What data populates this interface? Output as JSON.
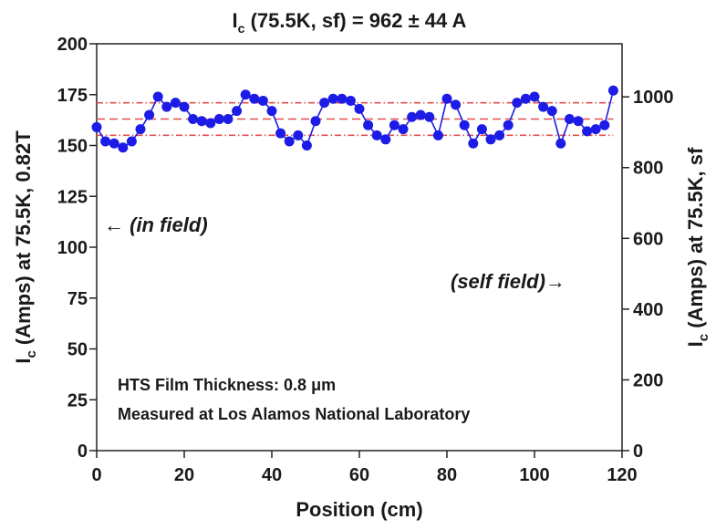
{
  "chart_data": {
    "type": "line",
    "title": {
      "main": "I",
      "sub": "c",
      "rest": " (75.5K, sf) = 962 ± 44 A"
    },
    "xlabel": "Position (cm)",
    "ylabel_left": {
      "main": "I",
      "sub": "c",
      "rest": " (Amps) at 75.5K, 0.82T"
    },
    "ylabel_right": {
      "main": "I",
      "sub": "c",
      "rest": " (Amps) at 75.5K, sf"
    },
    "xlim": [
      0,
      120
    ],
    "ylim": [
      0,
      200
    ],
    "ylim_right": [
      0,
      1150
    ],
    "x_ticks": [
      "0",
      "20",
      "40",
      "60",
      "80",
      "100",
      "120"
    ],
    "y_ticks": [
      "0",
      "25",
      "50",
      "75",
      "100",
      "125",
      "150",
      "175",
      "200"
    ],
    "y2_ticks": [
      "0",
      "200",
      "400",
      "600",
      "800",
      "1000"
    ],
    "grid": false,
    "series_color": "#1c1ce6",
    "ref_color": "#e05050",
    "series": [
      {
        "x": [
          0,
          2,
          4,
          6,
          8,
          10,
          12,
          14,
          16,
          18,
          20,
          22,
          24,
          26,
          28,
          30,
          32,
          34,
          36,
          38,
          40,
          42,
          44,
          46,
          48,
          50,
          52,
          54,
          56,
          58,
          60,
          62,
          64,
          66,
          68,
          70,
          72,
          74,
          76,
          78,
          80,
          82,
          84,
          86,
          88,
          90,
          92,
          94,
          96,
          98,
          100,
          102,
          104,
          106,
          108,
          110,
          112,
          114,
          116,
          118
        ],
        "values": [
          159,
          152,
          151,
          149,
          152,
          158,
          165,
          174,
          169,
          171,
          169,
          163,
          162,
          161,
          163,
          163,
          167,
          175,
          173,
          172,
          167,
          156,
          152,
          155,
          150,
          162,
          171,
          173,
          173,
          172,
          168,
          160,
          155,
          153,
          160,
          158,
          164,
          165,
          164,
          155,
          173,
          170,
          160,
          151,
          158,
          153,
          155,
          160,
          171,
          173,
          174,
          169,
          167,
          151,
          163,
          162,
          157,
          158,
          160,
          177
        ]
      }
    ],
    "reference_lines": [
      {
        "y": 171,
        "style": "dash-dot"
      },
      {
        "y": 163,
        "style": "dash"
      },
      {
        "y": 155,
        "style": "dash-dot"
      }
    ],
    "annotations": [
      {
        "text": "← (in field)"
      },
      {
        "text": "(self field)→"
      },
      {
        "text": "HTS Film Thickness: 0.8 μm"
      },
      {
        "text": "Measured at Los Alamos National Laboratory"
      }
    ]
  }
}
